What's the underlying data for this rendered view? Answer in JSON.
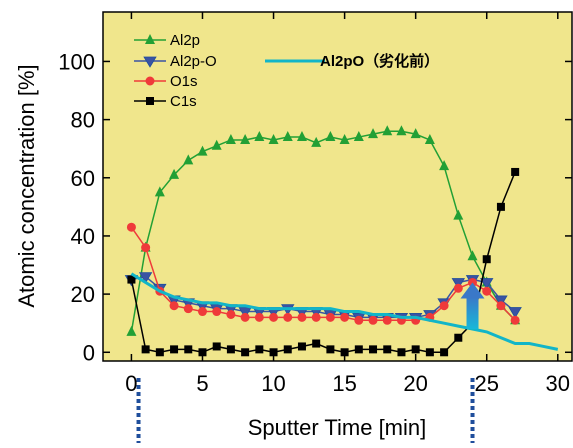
{
  "chart_data": {
    "type": "line",
    "xlabel": "Sputter Time [min]",
    "ylabel": "Atomic concentration [%]",
    "xlim": [
      -2,
      31
    ],
    "ylim": [
      -3,
      117
    ],
    "xticks": [
      0,
      5,
      10,
      15,
      20,
      25,
      30
    ],
    "yticks": [
      0,
      20,
      40,
      60,
      80,
      100
    ],
    "grid": false,
    "legend_position": "top-left",
    "colors": {
      "plot_background": "#f0e68c",
      "axis": "#000000",
      "marker_line": "#1f4e9c",
      "arrow": "#2aa0d8"
    },
    "series": [
      {
        "name": "Al2p",
        "color": "#22a035",
        "marker": "triangle-up",
        "x": [
          0,
          1,
          2,
          3,
          4,
          5,
          6,
          7,
          8,
          9,
          10,
          11,
          12,
          13,
          14,
          15,
          16,
          17,
          18,
          19,
          20,
          21,
          22,
          23,
          24,
          25,
          26,
          27
        ],
        "y": [
          7,
          36,
          55,
          61,
          66,
          69,
          71,
          73,
          73,
          74,
          73,
          74,
          74,
          72,
          74,
          73,
          74,
          75,
          76,
          76,
          75,
          73,
          64,
          47,
          33,
          24,
          16,
          11
        ]
      },
      {
        "name": "Al2p-O",
        "color": "#3a53a3",
        "marker": "triangle-down",
        "x": [
          0,
          1,
          2,
          3,
          4,
          5,
          6,
          7,
          8,
          9,
          10,
          11,
          12,
          13,
          14,
          15,
          16,
          17,
          18,
          19,
          20,
          21,
          22,
          23,
          24,
          25,
          26,
          27
        ],
        "y": [
          25,
          26,
          22,
          18,
          17,
          16,
          15,
          15,
          14,
          14,
          14,
          15,
          14,
          14,
          13,
          13,
          12,
          12,
          12,
          12,
          12,
          13,
          17,
          24,
          25,
          24,
          18,
          14
        ]
      },
      {
        "name": "O1s",
        "color": "#ef3a3a",
        "marker": "circle",
        "x": [
          0,
          1,
          2,
          3,
          4,
          5,
          6,
          7,
          8,
          9,
          10,
          11,
          12,
          13,
          14,
          15,
          16,
          17,
          18,
          19,
          20,
          21,
          22,
          23,
          24,
          25,
          26,
          27
        ],
        "y": [
          43,
          36,
          21,
          16,
          15,
          14,
          14,
          13,
          12,
          12,
          12,
          12,
          12,
          12,
          12,
          12,
          11,
          11,
          11,
          11,
          11,
          12,
          16,
          22,
          24,
          21,
          16,
          11
        ]
      },
      {
        "name": "C1s",
        "color": "#000000",
        "marker": "square",
        "x": [
          0,
          1,
          2,
          3,
          4,
          5,
          6,
          7,
          8,
          9,
          10,
          11,
          12,
          13,
          14,
          15,
          16,
          17,
          18,
          19,
          20,
          21,
          22,
          23,
          24,
          25,
          26,
          27
        ],
        "y": [
          25,
          1,
          0,
          1,
          1,
          0,
          2,
          1,
          0,
          1,
          0,
          1,
          2,
          3,
          1,
          0,
          1,
          1,
          1,
          0,
          1,
          0,
          0,
          5,
          10,
          32,
          50,
          62
        ]
      },
      {
        "name": "Al2pO（劣化前）",
        "color": "#12b5c8",
        "marker": "none",
        "x": [
          0,
          1,
          2,
          3,
          4,
          5,
          6,
          7,
          8,
          9,
          10,
          11,
          12,
          13,
          14,
          15,
          16,
          17,
          18,
          19,
          20,
          21,
          22,
          23,
          24,
          25,
          26,
          27,
          28,
          29,
          30
        ],
        "y": [
          27,
          24,
          21,
          19,
          18,
          17,
          17,
          16,
          16,
          15,
          15,
          15,
          15,
          15,
          15,
          14,
          14,
          13,
          13,
          12,
          12,
          11,
          10,
          9,
          8,
          7,
          5,
          3,
          3,
          2,
          1
        ]
      }
    ],
    "annotations": [
      {
        "type": "arrow",
        "direction": "up",
        "x": 24,
        "y_from": 8,
        "y_to": 24
      },
      {
        "type": "vertical-dashed-marker",
        "x": 0.5
      },
      {
        "type": "vertical-dashed-marker",
        "x": 24
      }
    ]
  }
}
